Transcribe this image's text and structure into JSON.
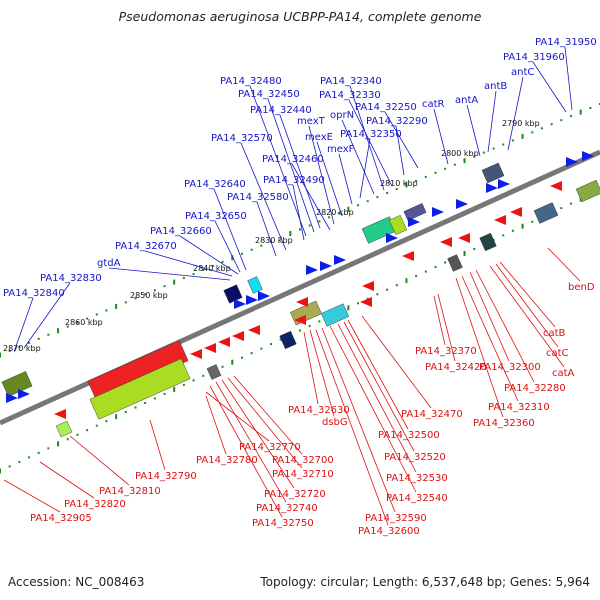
{
  "title": "Pseudomonas aeruginosa UCBPP-PA14, complete genome",
  "footer": {
    "accession": "Accession: NC_008463",
    "summary": "Topology: circular; Length: 6,537,648 bp; Genes: 5,964"
  },
  "colors": {
    "forward_label": "#1515c8",
    "reverse_label": "#dd1111",
    "backbone": "#777777",
    "tick": "#1c8a1c"
  },
  "positions": [
    "2790 kbp",
    "2800 kbp",
    "2810 kbp",
    "2820 kbp",
    "2830 kbp",
    "2840 kbp",
    "2850 kbp",
    "2860 kbp",
    "2870 kbp"
  ],
  "forward_labels": [
    "PA14_31950",
    "PA14_31960",
    "antC",
    "antB",
    "antA",
    "catR",
    "PA14_32250",
    "PA14_32290",
    "PA14_32330",
    "PA14_32340",
    "PA14_32350",
    "oprN",
    "mexF",
    "mexE",
    "mexT",
    "PA14_32440",
    "PA14_32450",
    "PA14_32480",
    "PA14_32460",
    "PA14_32490",
    "PA14_32570",
    "PA14_32580",
    "PA14_32640",
    "PA14_32650",
    "PA14_32660",
    "PA14_32670",
    "gtdA",
    "PA14_32830",
    "PA14_32840"
  ],
  "reverse_labels": [
    "benD",
    "catB",
    "catC",
    "catA",
    "PA14_32280",
    "PA14_32300",
    "PA14_32310",
    "PA14_32360",
    "PA14_32370",
    "PA14_32420",
    "PA14_32470",
    "PA14_32500",
    "PA14_32520",
    "PA14_32530",
    "PA14_32540",
    "PA14_32590",
    "PA14_32600",
    "PA14_32630",
    "dsbG",
    "PA14_32700",
    "PA14_32710",
    "PA14_32720",
    "PA14_32740",
    "PA14_32750",
    "PA14_32770",
    "PA14_32780",
    "PA14_32790",
    "PA14_32810",
    "PA14_32820",
    "PA14_32905"
  ]
}
